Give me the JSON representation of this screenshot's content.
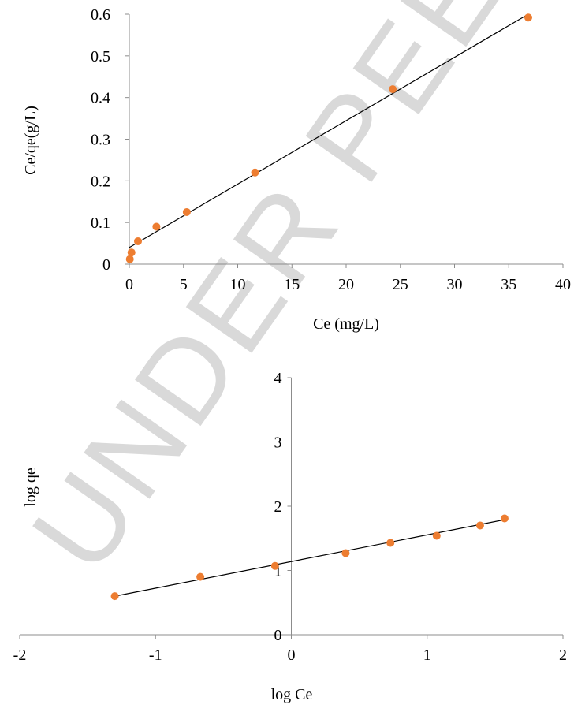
{
  "watermark": "UNDER PEER REVIEW",
  "colors": {
    "marker": "#ED7D31",
    "trendline": "#000000",
    "axis": "#8C8C8C",
    "watermark": "#D3D3D3"
  },
  "chart_data": [
    {
      "type": "scatter",
      "title": "",
      "xlabel": "Ce (mg/L)",
      "ylabel": "Ce/qe(g/L)",
      "xlim": [
        0,
        40
      ],
      "ylim": [
        0,
        0.6
      ],
      "xticks": [
        "0",
        "5",
        "10",
        "15",
        "20",
        "25",
        "30",
        "35",
        "40"
      ],
      "yticks": [
        "0",
        "0.1",
        "0.2",
        "0.3",
        "0.4",
        "0.5",
        "0.6"
      ],
      "grid": false,
      "points": [
        {
          "x": 0.05,
          "y": 0.012
        },
        {
          "x": 0.2,
          "y": 0.028
        },
        {
          "x": 0.8,
          "y": 0.055
        },
        {
          "x": 2.5,
          "y": 0.09
        },
        {
          "x": 5.3,
          "y": 0.125
        },
        {
          "x": 11.6,
          "y": 0.22
        },
        {
          "x": 24.3,
          "y": 0.42
        },
        {
          "x": 36.8,
          "y": 0.592
        }
      ],
      "trendline": {
        "x": [
          0,
          36.8
        ],
        "y": [
          0.04,
          0.6
        ]
      }
    },
    {
      "type": "scatter",
      "title": "",
      "xlabel": "log Ce",
      "ylabel": "log qe",
      "xlim": [
        -2,
        2
      ],
      "ylim": [
        0,
        4
      ],
      "xticks": [
        "-2",
        "-1",
        "0",
        "1",
        "2"
      ],
      "yticks": [
        "0",
        "1",
        "2",
        "3",
        "4"
      ],
      "grid": false,
      "points": [
        {
          "x": -1.3,
          "y": 0.6
        },
        {
          "x": -0.67,
          "y": 0.9
        },
        {
          "x": -0.12,
          "y": 1.07
        },
        {
          "x": 0.4,
          "y": 1.27
        },
        {
          "x": 0.73,
          "y": 1.43
        },
        {
          "x": 1.07,
          "y": 1.54
        },
        {
          "x": 1.39,
          "y": 1.7
        },
        {
          "x": 1.57,
          "y": 1.81
        }
      ],
      "trendline": {
        "x": [
          -1.3,
          1.57
        ],
        "y": [
          0.6,
          1.79
        ]
      }
    }
  ]
}
